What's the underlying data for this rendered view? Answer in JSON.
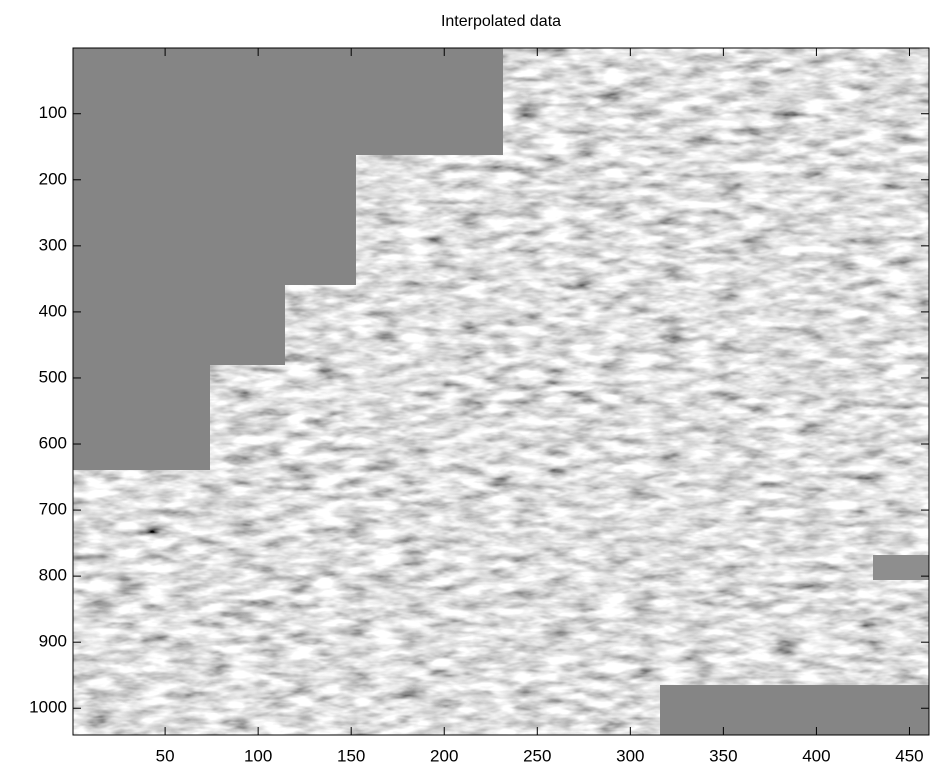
{
  "chart_data": {
    "type": "heatmap",
    "title": "Interpolated data",
    "xlim": [
      0.5,
      460.5
    ],
    "ylim": [
      0.5,
      1040.5
    ],
    "xticks": [
      50,
      100,
      150,
      200,
      250,
      300,
      350,
      400,
      450
    ],
    "yticks": [
      100,
      200,
      300,
      400,
      500,
      600,
      700,
      800,
      900,
      1000
    ],
    "y_reversed": true,
    "colormap": "gray"
  }
}
